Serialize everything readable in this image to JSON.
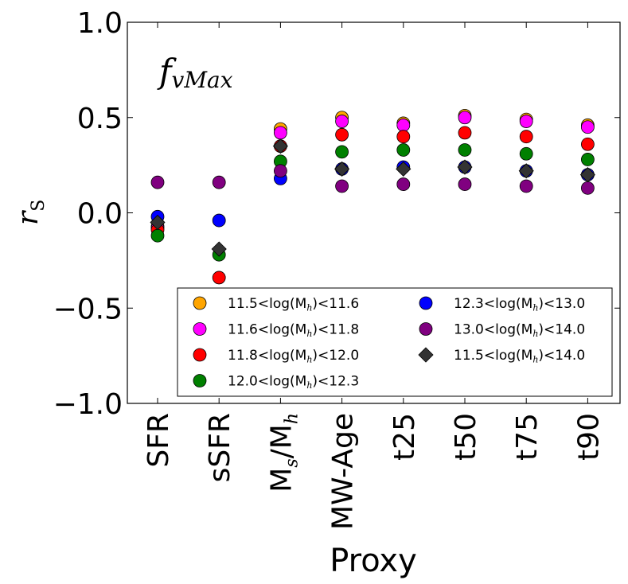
{
  "chart_data": {
    "type": "scatter",
    "annotation": {
      "main": "f",
      "sub": "vMax"
    },
    "xlabel": "Proxy",
    "ylabel": {
      "main": "r",
      "sub": "S"
    },
    "ylim": [
      -1.0,
      1.0
    ],
    "yticks": [
      1.0,
      0.5,
      0.0,
      -0.5,
      -1.0
    ],
    "ytick_labels": [
      "1.0",
      "0.5",
      "0.0",
      "−0.5",
      "−1.0"
    ],
    "categories": [
      "SFR",
      "sSFR",
      "M_s/M_h",
      "MW-Age",
      "t25",
      "t50",
      "t75",
      "t90"
    ],
    "category_labels": [
      {
        "parts": [
          [
            "SFR",
            ""
          ]
        ]
      },
      {
        "parts": [
          [
            "sSFR",
            ""
          ]
        ]
      },
      {
        "parts": [
          [
            "M",
            ""
          ],
          [
            "s",
            "sub"
          ],
          [
            "/M",
            ""
          ],
          [
            "h",
            "sub"
          ]
        ]
      },
      {
        "parts": [
          [
            "MW-Age",
            ""
          ]
        ]
      },
      {
        "parts": [
          [
            "t25",
            ""
          ]
        ]
      },
      {
        "parts": [
          [
            "t50",
            ""
          ]
        ]
      },
      {
        "parts": [
          [
            "t75",
            ""
          ]
        ]
      },
      {
        "parts": [
          [
            "t90",
            ""
          ]
        ]
      }
    ],
    "grid": false,
    "legend_position": "bottom-right",
    "legend_columns": 2,
    "series": [
      {
        "name": "11.5<log(M_h)<11.6",
        "label_parts": [
          [
            "11.5<log(M",
            ""
          ],
          [
            "h",
            "sub"
          ],
          [
            ")<11.6",
            ""
          ]
        ],
        "color": "#ffa500",
        "marker": "circle",
        "values": [
          -0.07,
          null,
          0.44,
          0.5,
          0.47,
          0.51,
          0.49,
          0.46
        ]
      },
      {
        "name": "11.6<log(M_h)<11.8",
        "label_parts": [
          [
            "11.6<log(M",
            ""
          ],
          [
            "h",
            "sub"
          ],
          [
            ")<11.8",
            ""
          ]
        ],
        "color": "#ff00ff",
        "marker": "circle",
        "values": [
          -0.08,
          null,
          0.42,
          0.48,
          0.46,
          0.5,
          0.48,
          0.45
        ]
      },
      {
        "name": "11.8<log(M_h)<12.0",
        "label_parts": [
          [
            "11.8<log(M",
            ""
          ],
          [
            "h",
            "sub"
          ],
          [
            ")<12.0",
            ""
          ]
        ],
        "color": "#ff0000",
        "marker": "circle",
        "values": [
          -0.09,
          -0.34,
          0.35,
          0.41,
          0.4,
          0.42,
          0.4,
          0.36
        ]
      },
      {
        "name": "12.0<log(M_h)<12.3",
        "label_parts": [
          [
            "12.0<log(M",
            ""
          ],
          [
            "h",
            "sub"
          ],
          [
            ")<12.3",
            ""
          ]
        ],
        "color": "#008000",
        "marker": "circle",
        "values": [
          -0.12,
          -0.22,
          0.27,
          0.32,
          0.33,
          0.33,
          0.31,
          0.28
        ]
      },
      {
        "name": "12.3<log(M_h)<13.0",
        "label_parts": [
          [
            "12.3<log(M",
            ""
          ],
          [
            "h",
            "sub"
          ],
          [
            ")<13.0",
            ""
          ]
        ],
        "color": "#0000ff",
        "marker": "circle",
        "values": [
          -0.02,
          -0.04,
          0.18,
          0.23,
          0.24,
          0.24,
          0.22,
          0.2
        ]
      },
      {
        "name": "13.0<log(M_h)<14.0",
        "label_parts": [
          [
            "13.0<log(M",
            ""
          ],
          [
            "h",
            "sub"
          ],
          [
            ")<14.0",
            ""
          ]
        ],
        "color": "#800080",
        "marker": "circle",
        "values": [
          0.16,
          0.16,
          0.22,
          0.14,
          0.15,
          0.15,
          0.14,
          0.13
        ]
      },
      {
        "name": "11.5<log(M_h)<14.0",
        "label_parts": [
          [
            "11.5<log(M",
            ""
          ],
          [
            "h",
            "sub"
          ],
          [
            ")<14.0",
            ""
          ]
        ],
        "color": "#333333",
        "marker": "diamond",
        "values": [
          -0.05,
          -0.19,
          0.35,
          0.23,
          0.23,
          0.24,
          0.22,
          0.2
        ]
      }
    ]
  }
}
